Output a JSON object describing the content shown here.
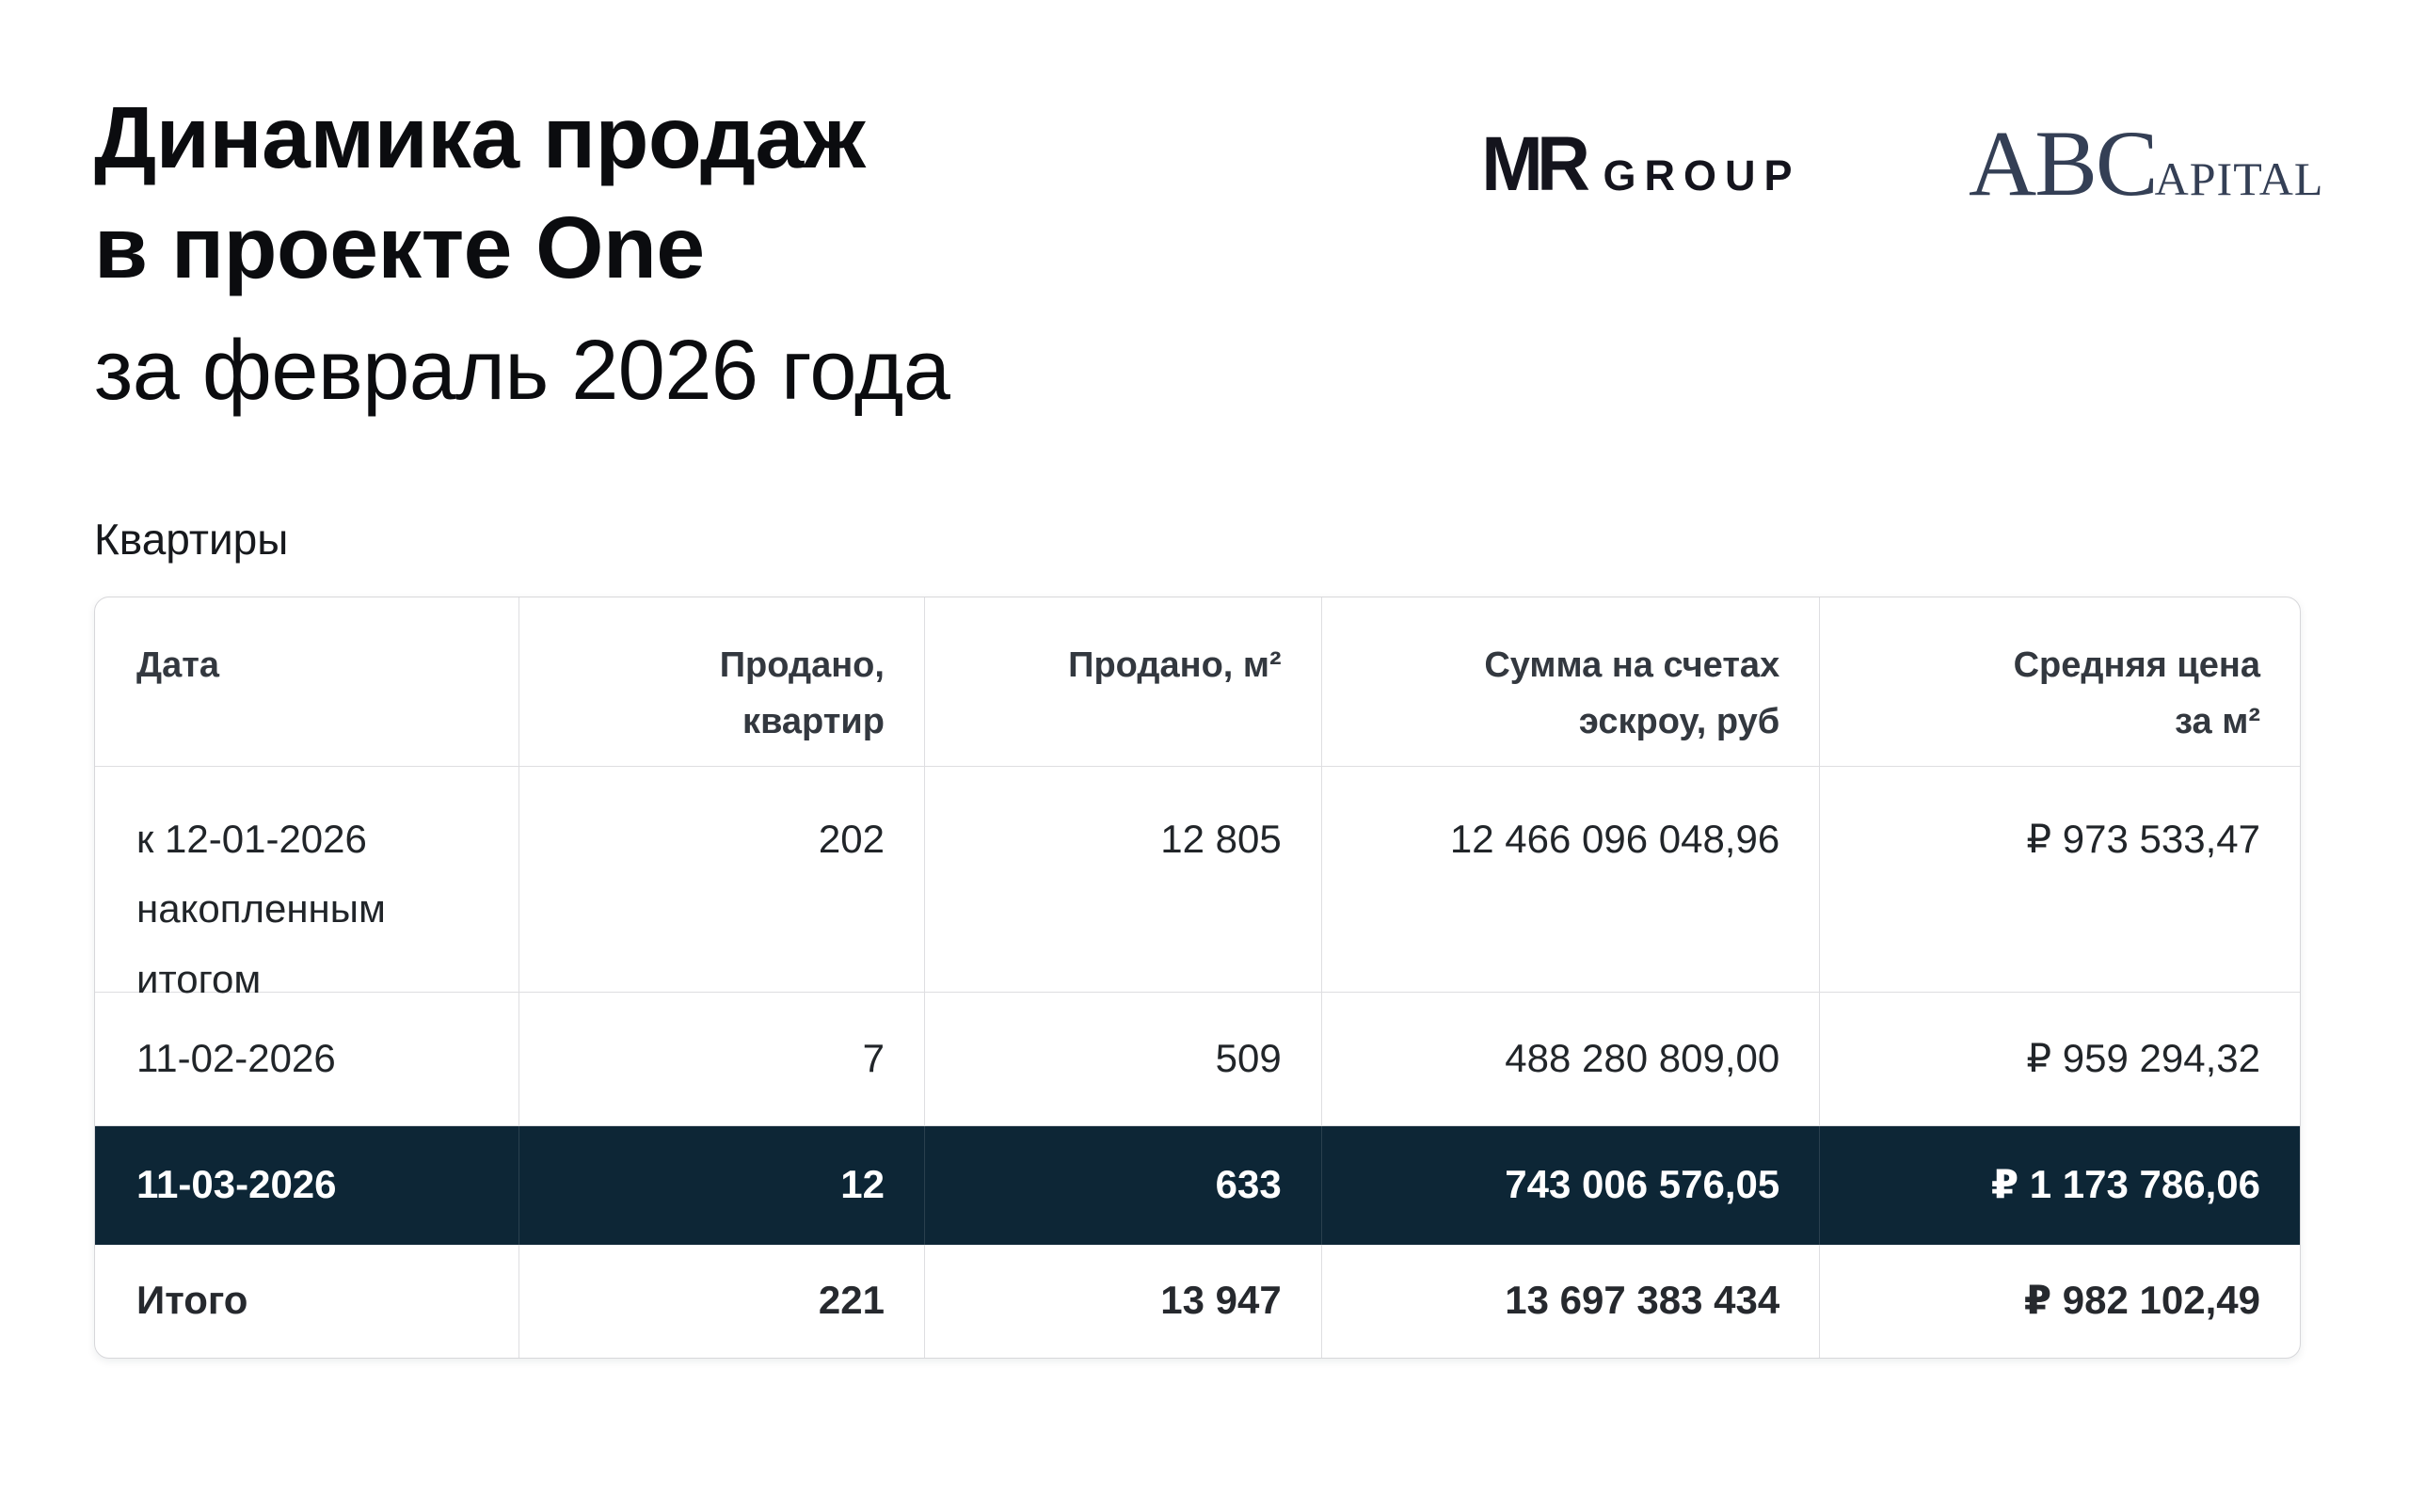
{
  "page": {
    "title_line1": "Динамика продаж",
    "title_line2": "в проекте One",
    "title_line3": "за февраль 2026 года",
    "section_label": "Квартиры"
  },
  "logos": {
    "mr_group": {
      "mark": "MR",
      "word": "GROUP"
    },
    "abcapital": {
      "lead": "ABC",
      "tail": "APITAL"
    }
  },
  "colors": {
    "highlight_row_bg": "#0D2636",
    "highlight_row_text": "#FFFFFF",
    "table_border": "#D7D7DA",
    "mr_logo": "#14141D",
    "abc_logo": "#343F55"
  },
  "table": {
    "headers": [
      {
        "lines": [
          "Дата"
        ]
      },
      {
        "lines": [
          "Продано,",
          "квартир"
        ]
      },
      {
        "lines": [
          "Продано, м²"
        ]
      },
      {
        "lines": [
          "Сумма на счетах",
          "эскроу, руб"
        ]
      },
      {
        "lines": [
          "Средняя цена",
          "за м²"
        ]
      }
    ],
    "rows": [
      {
        "date_lines": [
          "к 12-01-2026",
          "накопленным",
          "итогом"
        ],
        "sold_units": "202",
        "sold_area_m2": "12 805",
        "escrow_sum_rub": "12 466 096 048,96",
        "avg_price_per_m2": "₽ 973 533,47",
        "highlighted": false
      },
      {
        "date_lines": [
          "11-02-2026"
        ],
        "sold_units": "7",
        "sold_area_m2": "509",
        "escrow_sum_rub": "488 280 809,00",
        "avg_price_per_m2": "₽ 959 294,32",
        "highlighted": false
      },
      {
        "date_lines": [
          "11-03-2026"
        ],
        "sold_units": "12",
        "sold_area_m2": "633",
        "escrow_sum_rub": "743 006 576,05",
        "avg_price_per_m2": "₽ 1 173 786,06",
        "highlighted": true
      },
      {
        "date_lines": [
          "Итого"
        ],
        "sold_units": "221",
        "sold_area_m2": "13 947",
        "escrow_sum_rub": "13 697 383 434",
        "avg_price_per_m2": "₽ 982 102,49",
        "highlighted": false,
        "is_total": true
      }
    ]
  }
}
